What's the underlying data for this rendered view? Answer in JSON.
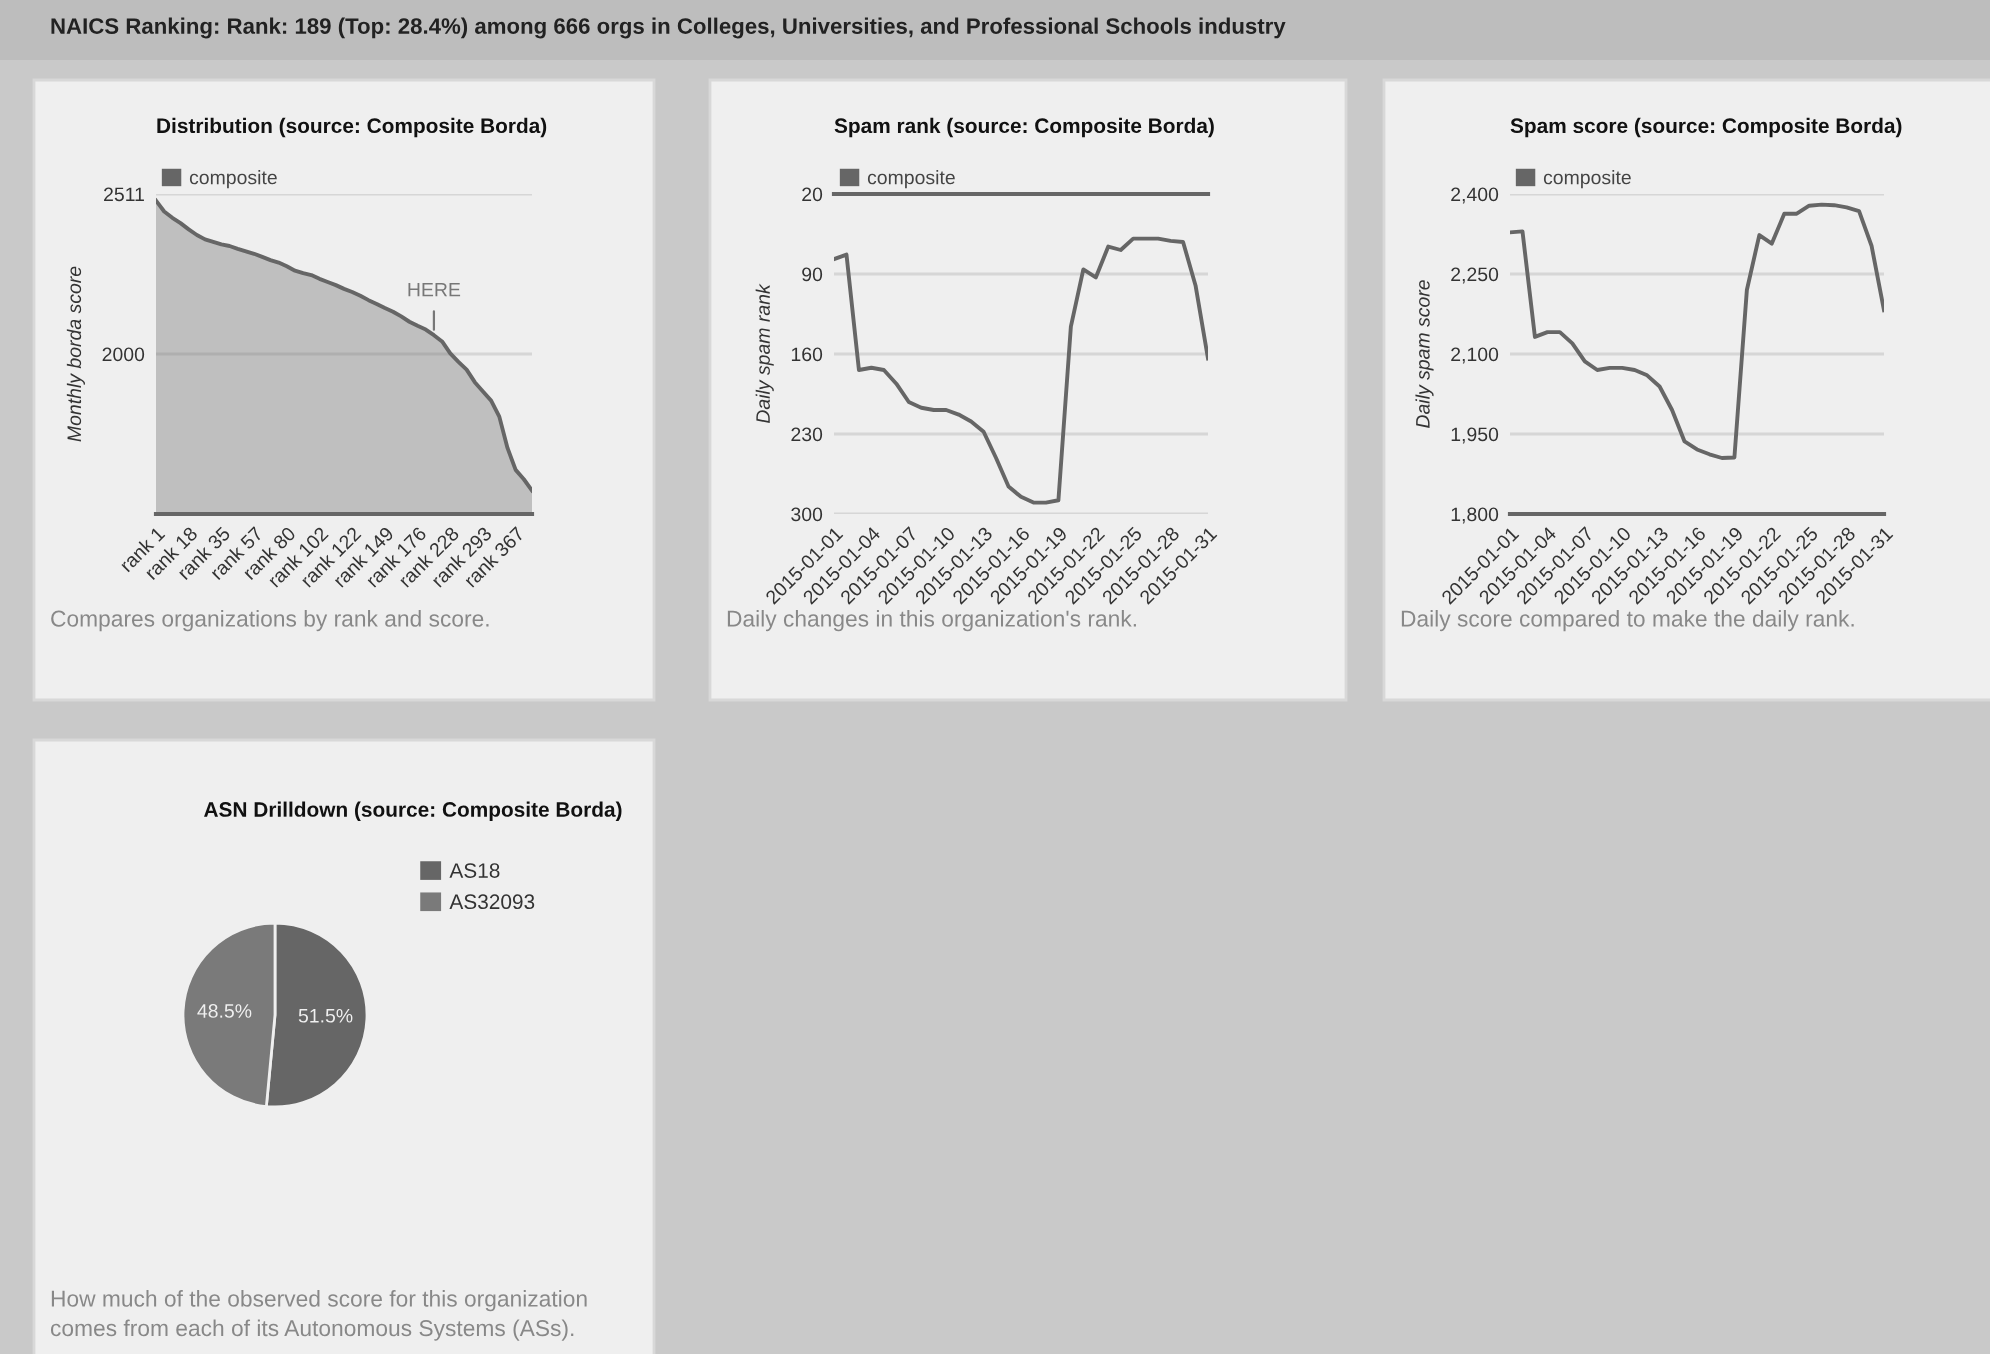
{
  "chart_data": [
    {
      "type": "other",
      "title": "NAICS Ranking: Rank: 189 (Top: 28.4%) among 666 orgs in Colleges, Universities, and Professional Schools industry"
    },
    {
      "type": "area",
      "title": "Distribution (source: Composite Borda)",
      "ylabel": "Monthly borda score",
      "categories": [
        "rank 1",
        null,
        null,
        null,
        "rank 18",
        null,
        null,
        null,
        "rank 35",
        null,
        null,
        null,
        "rank 57",
        null,
        null,
        null,
        "rank 80",
        null,
        null,
        null,
        "rank 102",
        null,
        null,
        null,
        "rank 122",
        null,
        null,
        null,
        "rank 149",
        null,
        null,
        null,
        "rank 176",
        null,
        null,
        null,
        "rank 228",
        null,
        null,
        null,
        "rank 293",
        null,
        null,
        null,
        "rank 367",
        null,
        null
      ],
      "series": [
        {
          "name": "composite",
          "color": "#666666",
          "values": [
            2490,
            2455,
            2435,
            2418,
            2398,
            2380,
            2366,
            2358,
            2350,
            2345,
            2336,
            2328,
            2320,
            2310,
            2300,
            2292,
            2280,
            2266,
            2258,
            2252,
            2240,
            2230,
            2220,
            2208,
            2198,
            2186,
            2172,
            2160,
            2147,
            2135,
            2120,
            2103,
            2090,
            2078,
            2060,
            2040,
            2002,
            1975,
            1950,
            1910,
            1880,
            1851,
            1800,
            1700,
            1630,
            1600,
            1564
          ]
        }
      ],
      "ylim": [
        1489,
        2511
      ],
      "yticks": [
        2000,
        2511
      ],
      "grid": "y",
      "legend": "top",
      "annotations": [
        {
          "text": "HERE",
          "y": 2060
        },
        "Compares organizations by rank and score."
      ]
    },
    {
      "type": "line",
      "title": "Spam rank (source: Composite Borda)",
      "ylabel": "Daily spam rank",
      "x": [
        "2015-01-01",
        "2015-01-02",
        "2015-01-03",
        "2015-01-04",
        "2015-01-05",
        "2015-01-06",
        "2015-01-07",
        "2015-01-08",
        "2015-01-09",
        "2015-01-10",
        "2015-01-11",
        "2015-01-12",
        "2015-01-13",
        "2015-01-14",
        "2015-01-15",
        "2015-01-16",
        "2015-01-17",
        "2015-01-18",
        "2015-01-19",
        "2015-01-20",
        "2015-01-21",
        "2015-01-22",
        "2015-01-23",
        "2015-01-24",
        "2015-01-25",
        "2015-01-26",
        "2015-01-27",
        "2015-01-28",
        "2015-01-29",
        "2015-01-30",
        "2015-01-31"
      ],
      "series": [
        {
          "name": "composite",
          "color": "#666666",
          "values": [
            77,
            73,
            174,
            172,
            174,
            186,
            202,
            207,
            209,
            209,
            213,
            219,
            228,
            251,
            276,
            285,
            290,
            290,
            288,
            136,
            86,
            93,
            66,
            69,
            59,
            59,
            59,
            61,
            62,
            100,
            164
          ]
        }
      ],
      "xlim": [
        "2015-01-01",
        "2015-01-31"
      ],
      "xticks": [
        "2015-01-01",
        "2015-01-04",
        "2015-01-07",
        "2015-01-10",
        "2015-01-13",
        "2015-01-16",
        "2015-01-19",
        "2015-01-22",
        "2015-01-25",
        "2015-01-28",
        "2015-01-31"
      ],
      "ylim": [
        300,
        20
      ],
      "yticks": [
        20,
        90,
        160,
        230,
        300
      ],
      "grid": "y",
      "legend": "top",
      "annotations": [
        "Daily changes in this organization's rank."
      ]
    },
    {
      "type": "line",
      "title": "Spam score (source: Composite Borda)",
      "ylabel": "Daily spam score",
      "x": [
        "2015-01-01",
        "2015-01-02",
        "2015-01-03",
        "2015-01-04",
        "2015-01-05",
        "2015-01-06",
        "2015-01-07",
        "2015-01-08",
        "2015-01-09",
        "2015-01-10",
        "2015-01-11",
        "2015-01-12",
        "2015-01-13",
        "2015-01-14",
        "2015-01-15",
        "2015-01-16",
        "2015-01-17",
        "2015-01-18",
        "2015-01-19",
        "2015-01-20",
        "2015-01-21",
        "2015-01-22",
        "2015-01-23",
        "2015-01-24",
        "2015-01-25",
        "2015-01-26",
        "2015-01-27",
        "2015-01-28",
        "2015-01-29",
        "2015-01-30",
        "2015-01-31"
      ],
      "series": [
        {
          "name": "composite",
          "color": "#666666",
          "values": [
            2328,
            2330,
            2132,
            2141,
            2141,
            2120,
            2086,
            2070,
            2074,
            2074,
            2070,
            2060,
            2039,
            1995,
            1936,
            1921,
            1912,
            1905,
            1906,
            2220,
            2323,
            2307,
            2363,
            2363,
            2378,
            2380,
            2379,
            2375,
            2368,
            2303,
            2182
          ]
        }
      ],
      "xlim": [
        "2015-01-01",
        "2015-01-31"
      ],
      "xticks": [
        "2015-01-01",
        "2015-01-04",
        "2015-01-07",
        "2015-01-10",
        "2015-01-13",
        "2015-01-16",
        "2015-01-19",
        "2015-01-22",
        "2015-01-25",
        "2015-01-28",
        "2015-01-31"
      ],
      "ylim": [
        1800,
        2400
      ],
      "yticks": [
        {
          "value": 1800,
          "label": "1,800"
        },
        {
          "value": 1950,
          "label": "1,950"
        },
        {
          "value": 2100,
          "label": "2,100"
        },
        {
          "value": 2250,
          "label": "2,250"
        },
        {
          "value": 2400,
          "label": "2,400"
        }
      ],
      "grid": "y",
      "legend": "top",
      "annotations": [
        "Daily score compared to make the daily rank."
      ]
    },
    {
      "type": "pie",
      "title": "ASN Drilldown (source: Composite Borda)",
      "categories": [
        "AS18",
        "AS32093"
      ],
      "values": [
        51.5,
        48.5
      ],
      "colors": [
        "#666666",
        "#7a7a7a"
      ],
      "value_labels": [
        "51.5%",
        "48.5%"
      ],
      "legend": "top right",
      "annotations": [
        "How much of the observed score for this organization comes from each of its Autonomous Systems (ASs)."
      ]
    }
  ]
}
